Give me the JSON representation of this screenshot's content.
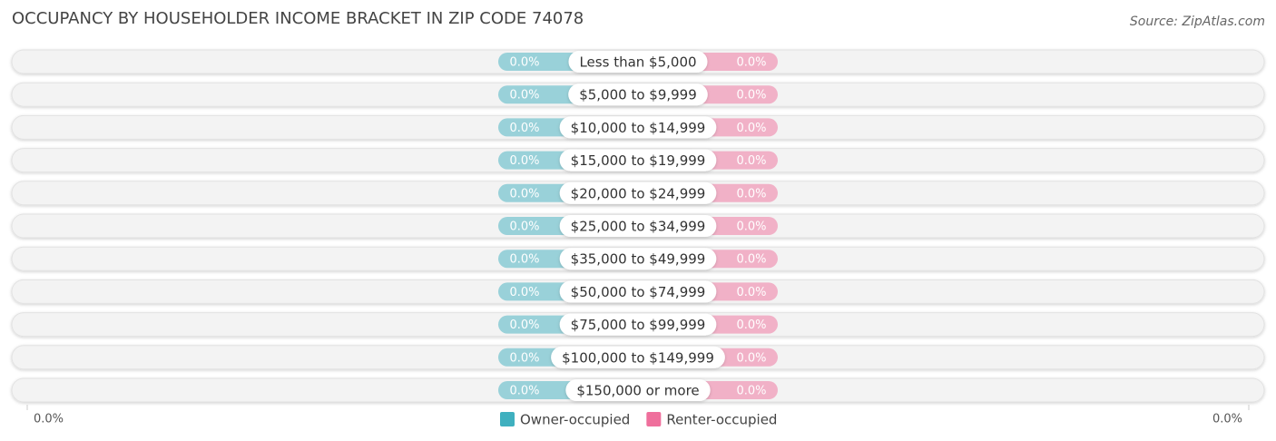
{
  "chart_data": {
    "type": "diverging-bar",
    "title": "OCCUPANCY BY HOUSEHOLDER INCOME BRACKET IN ZIP CODE 74078",
    "source": "Source: ZipAtlas.com",
    "categories": [
      "Less than $5,000",
      "$5,000 to $9,999",
      "$10,000 to $14,999",
      "$15,000 to $19,999",
      "$20,000 to $24,999",
      "$25,000 to $34,999",
      "$35,000 to $49,999",
      "$50,000 to $74,999",
      "$75,000 to $99,999",
      "$100,000 to $149,999",
      "$150,000 or more"
    ],
    "series": [
      {
        "name": "Owner-occupied",
        "color": "#3fb0bf",
        "side": "left",
        "values": [
          0,
          0,
          0,
          0,
          0,
          0,
          0,
          0,
          0,
          0,
          0
        ],
        "value_labels": [
          "0.0%",
          "0.0%",
          "0.0%",
          "0.0%",
          "0.0%",
          "0.0%",
          "0.0%",
          "0.0%",
          "0.0%",
          "0.0%",
          "0.0%"
        ],
        "axis_label": {
          "value": 0,
          "label": "0.0%"
        }
      },
      {
        "name": "Renter-occupied",
        "color": "#ef6f9c",
        "side": "right",
        "values": [
          0,
          0,
          0,
          0,
          0,
          0,
          0,
          0,
          0,
          0,
          0
        ],
        "value_labels": [
          "0.0%",
          "0.0%",
          "0.0%",
          "0.0%",
          "0.0%",
          "0.0%",
          "0.0%",
          "0.0%",
          "0.0%",
          "0.0%",
          "0.0%"
        ],
        "axis_label": {
          "value": 0,
          "label": "0.0%"
        }
      }
    ]
  }
}
